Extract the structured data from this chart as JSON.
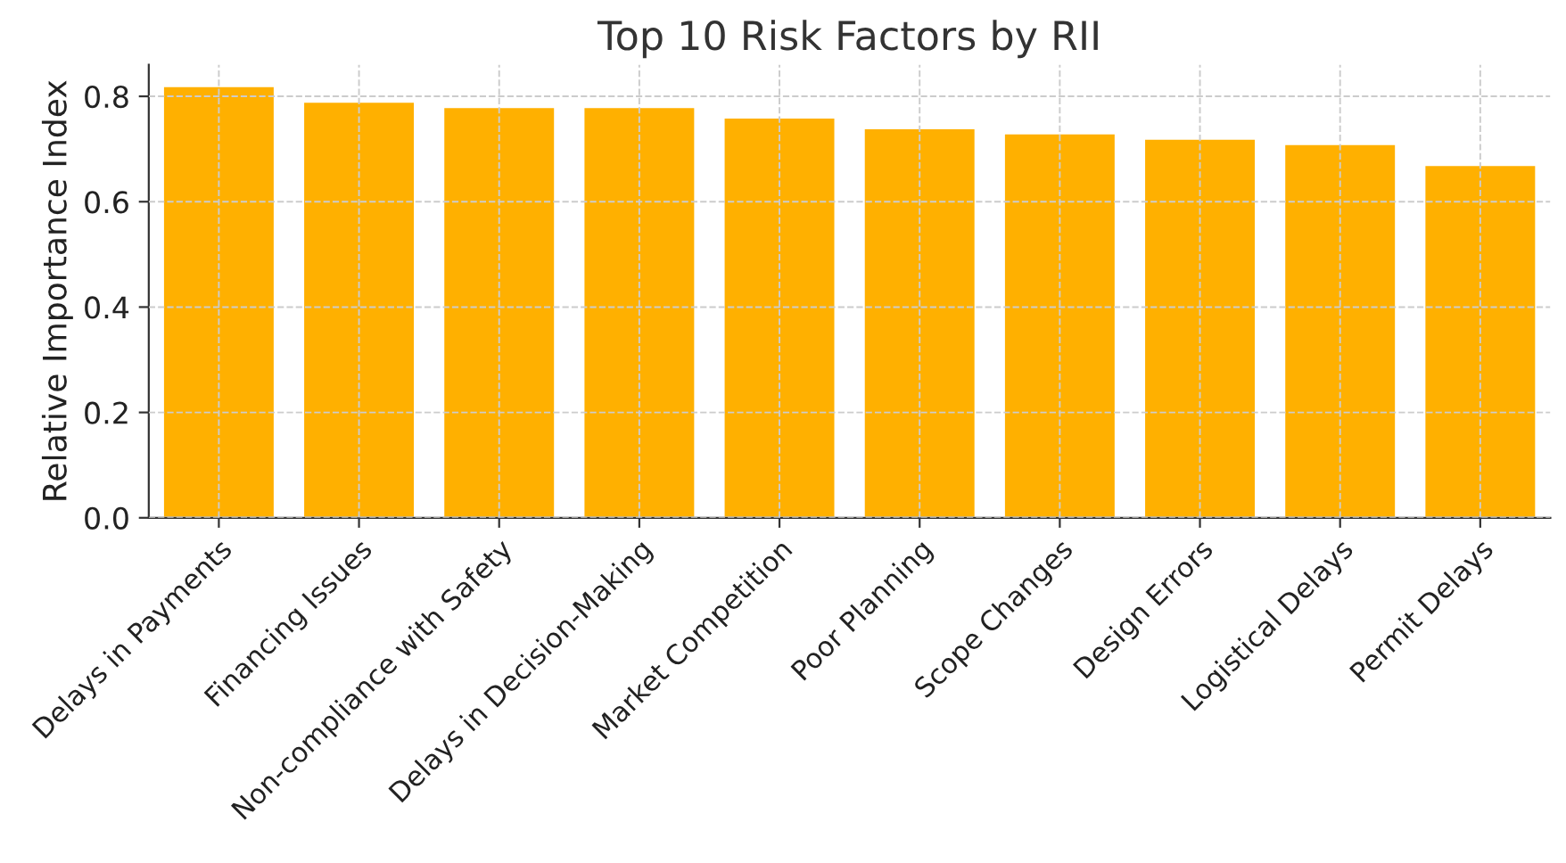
{
  "chart_data": {
    "type": "bar",
    "title": "Top 10 Risk Factors by RII",
    "ylabel": "Relative Importance Index",
    "categories": [
      "Delays in Payments",
      "Financing Issues",
      "Non-compliance with Safety",
      "Delays in Decision-Making",
      "Market Competition",
      "Poor Planning",
      "Scope Changes",
      "Design Errors",
      "Logistical Delays",
      "Permit Delays"
    ],
    "values": [
      0.82,
      0.79,
      0.78,
      0.78,
      0.76,
      0.74,
      0.73,
      0.72,
      0.71,
      0.67
    ],
    "color": "#ffb000",
    "ylim": [
      0,
      0.86
    ],
    "yticks": [
      {
        "value": 0,
        "label": "0.0"
      },
      {
        "value": 0.2,
        "label": "0.2"
      },
      {
        "value": 0.4,
        "label": "0.4"
      },
      {
        "value": 0.6,
        "label": "0.6"
      },
      {
        "value": 0.8,
        "label": "0.8"
      }
    ],
    "grid": true
  }
}
